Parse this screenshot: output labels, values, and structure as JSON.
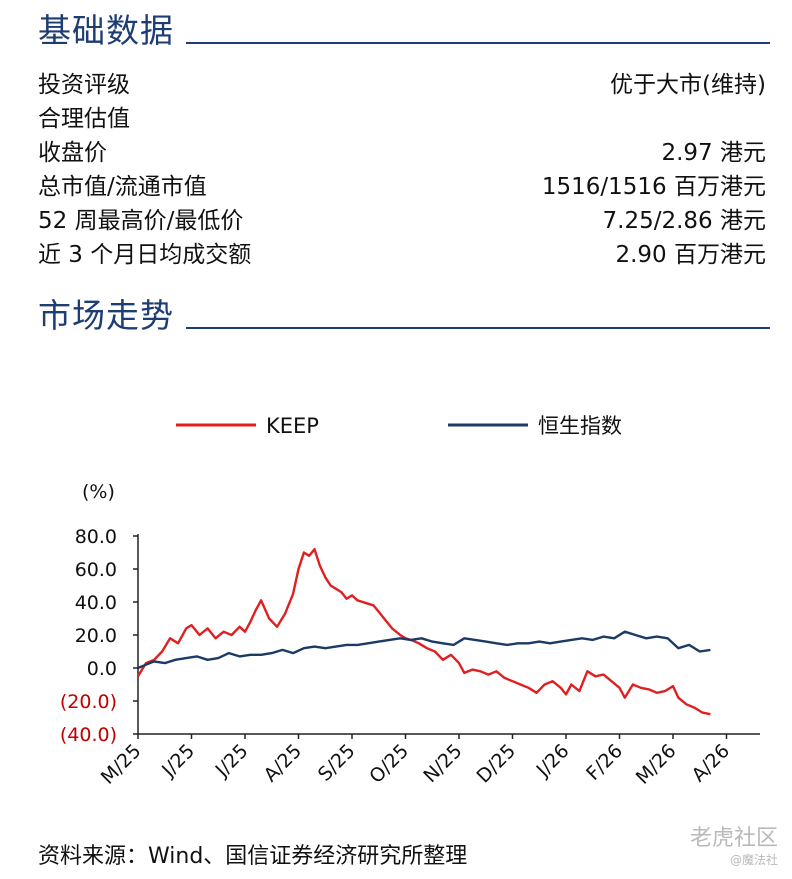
{
  "sections": {
    "basic_title": "基础数据",
    "trend_title": "市场走势"
  },
  "basic_data": [
    {
      "label": "投资评级",
      "value": "优于大市(维持)"
    },
    {
      "label": "合理估值",
      "value": ""
    },
    {
      "label": "收盘价",
      "value": "2.97 港元"
    },
    {
      "label": "总市值/流通市值",
      "value": "1516/1516 百万港元"
    },
    {
      "label": "52 周最高价/最低价",
      "value": "7.25/2.86 港元"
    },
    {
      "label": "近 3 个月日均成交额",
      "value": "2.90 百万港元"
    }
  ],
  "source": "资料来源：Wind、国信证券经济研究所整理",
  "watermark": {
    "line1": "老虎社区",
    "line2": "@魔法社"
  },
  "colors": {
    "accent": "#1d3d73",
    "keep": "#e02020",
    "hsi": "#1b3a66",
    "negative": "#c00000"
  },
  "chart_data": {
    "type": "line",
    "ylabel": "(%)",
    "ylim": [
      -40,
      80
    ],
    "y_ticks": [
      80,
      60,
      40,
      20,
      0,
      -20,
      -40
    ],
    "y_tick_labels": [
      "80.0",
      "60.0",
      "40.0",
      "20.0",
      "0.0",
      "(20.0)",
      "(40.0)"
    ],
    "x_tick_labels": [
      "M/25",
      "J/25",
      "J/25",
      "A/25",
      "S/25",
      "O/25",
      "N/25",
      "D/25",
      "J/26",
      "F/26",
      "M/26",
      "A/26"
    ],
    "x_range": [
      0,
      11
    ],
    "legend": [
      "KEEP",
      "恒生指数"
    ],
    "series": [
      {
        "name": "KEEP",
        "x": [
          0,
          0.15,
          0.3,
          0.45,
          0.6,
          0.75,
          0.9,
          1.0,
          1.15,
          1.3,
          1.45,
          1.6,
          1.75,
          1.9,
          2.0,
          2.1,
          2.2,
          2.3,
          2.45,
          2.6,
          2.75,
          2.9,
          3.0,
          3.1,
          3.2,
          3.3,
          3.4,
          3.5,
          3.6,
          3.7,
          3.8,
          3.9,
          4.0,
          4.1,
          4.2,
          4.3,
          4.4,
          4.5,
          4.6,
          4.75,
          4.9,
          5.0,
          5.1,
          5.25,
          5.4,
          5.55,
          5.7,
          5.85,
          6.0,
          6.1,
          6.25,
          6.4,
          6.55,
          6.7,
          6.85,
          7.0,
          7.15,
          7.3,
          7.45,
          7.6,
          7.75,
          7.9,
          8.0,
          8.1,
          8.25,
          8.4,
          8.55,
          8.7,
          8.85,
          9.0,
          9.1,
          9.25,
          9.4,
          9.55,
          9.7,
          9.85,
          10.0,
          10.1,
          10.25,
          10.4,
          10.55,
          10.7
        ],
        "values": [
          -5,
          3,
          5,
          10,
          18,
          15,
          24,
          26,
          20,
          24,
          18,
          22,
          20,
          25,
          22,
          28,
          35,
          41,
          30,
          25,
          33,
          45,
          60,
          70,
          68,
          72,
          62,
          55,
          50,
          48,
          46,
          42,
          44,
          41,
          40,
          39,
          38,
          34,
          30,
          24,
          20,
          18,
          17,
          15,
          12,
          10,
          5,
          8,
          3,
          -3,
          -1,
          -2,
          -4,
          -2,
          -6,
          -8,
          -10,
          -12,
          -15,
          -10,
          -8,
          -12,
          -16,
          -10,
          -14,
          -2,
          -5,
          -4,
          -8,
          -12,
          -18,
          -10,
          -12,
          -13,
          -15,
          -14,
          -11,
          -18,
          -22,
          -24,
          -27,
          -28
        ]
      },
      {
        "name": "恒生指数",
        "x": [
          0,
          0.15,
          0.3,
          0.5,
          0.7,
          0.9,
          1.1,
          1.3,
          1.5,
          1.7,
          1.9,
          2.1,
          2.3,
          2.5,
          2.7,
          2.9,
          3.1,
          3.3,
          3.5,
          3.7,
          3.9,
          4.1,
          4.3,
          4.5,
          4.7,
          4.9,
          5.1,
          5.3,
          5.5,
          5.7,
          5.9,
          6.1,
          6.3,
          6.5,
          6.7,
          6.9,
          7.1,
          7.3,
          7.5,
          7.7,
          7.9,
          8.1,
          8.3,
          8.5,
          8.7,
          8.9,
          9.1,
          9.3,
          9.5,
          9.7,
          9.9,
          10.1,
          10.3,
          10.5,
          10.7
        ],
        "values": [
          0,
          2,
          4,
          3,
          5,
          6,
          7,
          5,
          6,
          9,
          7,
          8,
          8,
          9,
          11,
          9,
          12,
          13,
          12,
          13,
          14,
          14,
          15,
          16,
          17,
          18,
          17,
          18,
          16,
          15,
          14,
          18,
          17,
          16,
          15,
          14,
          15,
          15,
          16,
          15,
          16,
          17,
          18,
          17,
          19,
          18,
          22,
          20,
          18,
          19,
          18,
          12,
          14,
          10,
          11
        ]
      }
    ]
  }
}
